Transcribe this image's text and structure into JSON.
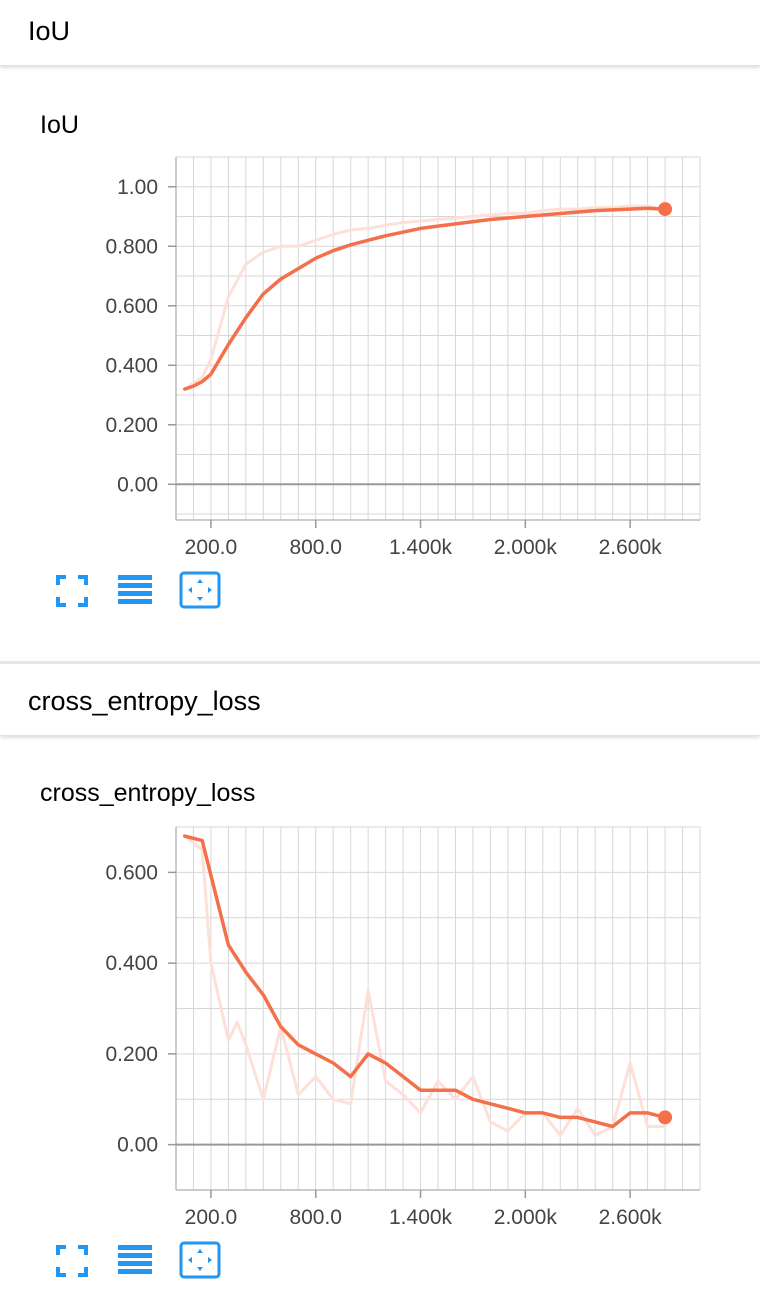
{
  "sections": [
    {
      "header_title": "IoU",
      "chart_title": "IoU",
      "toolbar": [
        "expand-icon",
        "list-icon",
        "fit-domain-icon"
      ]
    },
    {
      "header_title": "cross_entropy_loss",
      "chart_title": "cross_entropy_loss",
      "toolbar": [
        "expand-icon",
        "list-icon",
        "fit-domain-icon"
      ]
    }
  ],
  "colors": {
    "smoothed_line": "#f4704b",
    "raw_line": "#fde0d8",
    "grid": "#d7d7d7",
    "zero_line": "#999999",
    "icon": "#2196f3"
  },
  "chart_data": [
    {
      "type": "line",
      "title": "IoU",
      "xlabel": "",
      "ylabel": "",
      "xlim": [
        0,
        3000
      ],
      "ylim": [
        -0.12,
        1.1
      ],
      "x_ticks": [
        200,
        800,
        1400,
        2000,
        2600
      ],
      "x_tick_labels": [
        "200.0",
        "800.0",
        "1.400k",
        "2.000k",
        "2.600k"
      ],
      "y_ticks": [
        0,
        0.2,
        0.4,
        0.6,
        0.8,
        1.0
      ],
      "y_tick_labels": [
        "0.00",
        "0.200",
        "0.400",
        "0.600",
        "0.800",
        "1.00"
      ],
      "grid": true,
      "series": [
        {
          "role": "raw",
          "x": [
            50,
            150,
            200,
            300,
            400,
            500,
            600,
            700,
            800,
            900,
            1000,
            1100,
            1200,
            1300,
            1400,
            1500,
            1600,
            1700,
            1800,
            1900,
            2000,
            2100,
            2200,
            2300,
            2400,
            2500,
            2600,
            2700,
            2800
          ],
          "y": [
            0.32,
            0.36,
            0.42,
            0.63,
            0.74,
            0.78,
            0.8,
            0.8,
            0.82,
            0.84,
            0.855,
            0.86,
            0.87,
            0.88,
            0.885,
            0.89,
            0.895,
            0.9,
            0.905,
            0.91,
            0.91,
            0.92,
            0.925,
            0.925,
            0.93,
            0.93,
            0.935,
            0.935,
            0.92
          ]
        },
        {
          "role": "smoothed",
          "x": [
            50,
            100,
            150,
            200,
            300,
            400,
            500,
            600,
            700,
            800,
            900,
            1000,
            1200,
            1400,
            1600,
            1800,
            2000,
            2200,
            2400,
            2600,
            2700,
            2800
          ],
          "y": [
            0.32,
            0.33,
            0.345,
            0.37,
            0.47,
            0.56,
            0.64,
            0.69,
            0.725,
            0.76,
            0.785,
            0.805,
            0.835,
            0.86,
            0.875,
            0.89,
            0.9,
            0.91,
            0.92,
            0.925,
            0.928,
            0.925
          ]
        }
      ]
    },
    {
      "type": "line",
      "title": "cross_entropy_loss",
      "xlabel": "",
      "ylabel": "",
      "xlim": [
        0,
        3000
      ],
      "ylim": [
        -0.1,
        0.7
      ],
      "x_ticks": [
        200,
        800,
        1400,
        2000,
        2600
      ],
      "x_tick_labels": [
        "200.0",
        "800.0",
        "1.400k",
        "2.000k",
        "2.600k"
      ],
      "y_ticks": [
        0,
        0.2,
        0.4,
        0.6
      ],
      "y_tick_labels": [
        "0.00",
        "0.200",
        "0.400",
        "0.600"
      ],
      "grid": true,
      "series": [
        {
          "role": "raw",
          "x": [
            50,
            150,
            200,
            300,
            350,
            400,
            500,
            600,
            700,
            800,
            900,
            1000,
            1100,
            1200,
            1300,
            1400,
            1500,
            1600,
            1700,
            1800,
            1900,
            2000,
            2100,
            2200,
            2300,
            2400,
            2500,
            2600,
            2700,
            2800
          ],
          "y": [
            0.68,
            0.65,
            0.4,
            0.23,
            0.27,
            0.22,
            0.1,
            0.26,
            0.11,
            0.15,
            0.1,
            0.09,
            0.34,
            0.14,
            0.11,
            0.07,
            0.14,
            0.1,
            0.15,
            0.05,
            0.03,
            0.07,
            0.07,
            0.02,
            0.08,
            0.02,
            0.04,
            0.18,
            0.04,
            0.04
          ]
        },
        {
          "role": "smoothed",
          "x": [
            50,
            150,
            300,
            400,
            500,
            600,
            700,
            800,
            900,
            1000,
            1100,
            1200,
            1300,
            1400,
            1500,
            1600,
            1700,
            1800,
            1900,
            2000,
            2100,
            2200,
            2300,
            2400,
            2500,
            2600,
            2700,
            2800
          ],
          "y": [
            0.68,
            0.67,
            0.44,
            0.38,
            0.33,
            0.26,
            0.22,
            0.2,
            0.18,
            0.15,
            0.2,
            0.18,
            0.15,
            0.12,
            0.12,
            0.12,
            0.1,
            0.09,
            0.08,
            0.07,
            0.07,
            0.06,
            0.06,
            0.05,
            0.04,
            0.07,
            0.07,
            0.06
          ]
        }
      ]
    }
  ]
}
